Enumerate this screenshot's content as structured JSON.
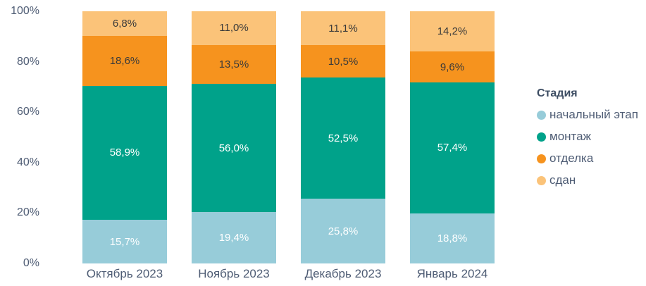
{
  "chart_data": {
    "type": "bar",
    "stacked": true,
    "percent": true,
    "title": "",
    "legend_title": "Стадия",
    "legend_position": "right",
    "grid": false,
    "categories": [
      "Октябрь 2023",
      "Ноябрь 2023",
      "Декабрь 2023",
      "Январь 2024"
    ],
    "series": [
      {
        "name": "начальный этап",
        "color": "#97CCD9",
        "label_color": "#FFFFFF",
        "values": [
          15.7,
          19.4,
          25.8,
          18.8
        ],
        "labels": [
          "15,7%",
          "19,4%",
          "25,8%",
          "18,8%"
        ]
      },
      {
        "name": "монтаж",
        "color": "#00A28A",
        "label_color": "#FFFFFF",
        "values": [
          58.9,
          56.0,
          52.5,
          57.4
        ],
        "labels": [
          "58,9%",
          "56,0%",
          "52,5%",
          "57,4%"
        ]
      },
      {
        "name": "отделка",
        "color": "#F6931E",
        "label_color": "#3A3A3A",
        "values": [
          18.6,
          13.5,
          10.5,
          9.6
        ],
        "labels": [
          "18,6%",
          "13,5%",
          "10,5%",
          "9,6%"
        ]
      },
      {
        "name": "сдан",
        "color": "#FBC379",
        "label_color": "#3A3A3A",
        "values": [
          6.8,
          11.0,
          11.1,
          14.2
        ],
        "labels": [
          "6,8%",
          "11,0%",
          "11,1%",
          "14,2%"
        ]
      }
    ],
    "y_ticks": [
      "0%",
      "20%",
      "40%",
      "60%",
      "80%",
      "100%"
    ],
    "ylim": [
      0,
      100
    ]
  },
  "colors": {
    "background": "#FFFFFF",
    "axis_text": "#4E5C74",
    "legend_title_text": "#3D4D63"
  }
}
